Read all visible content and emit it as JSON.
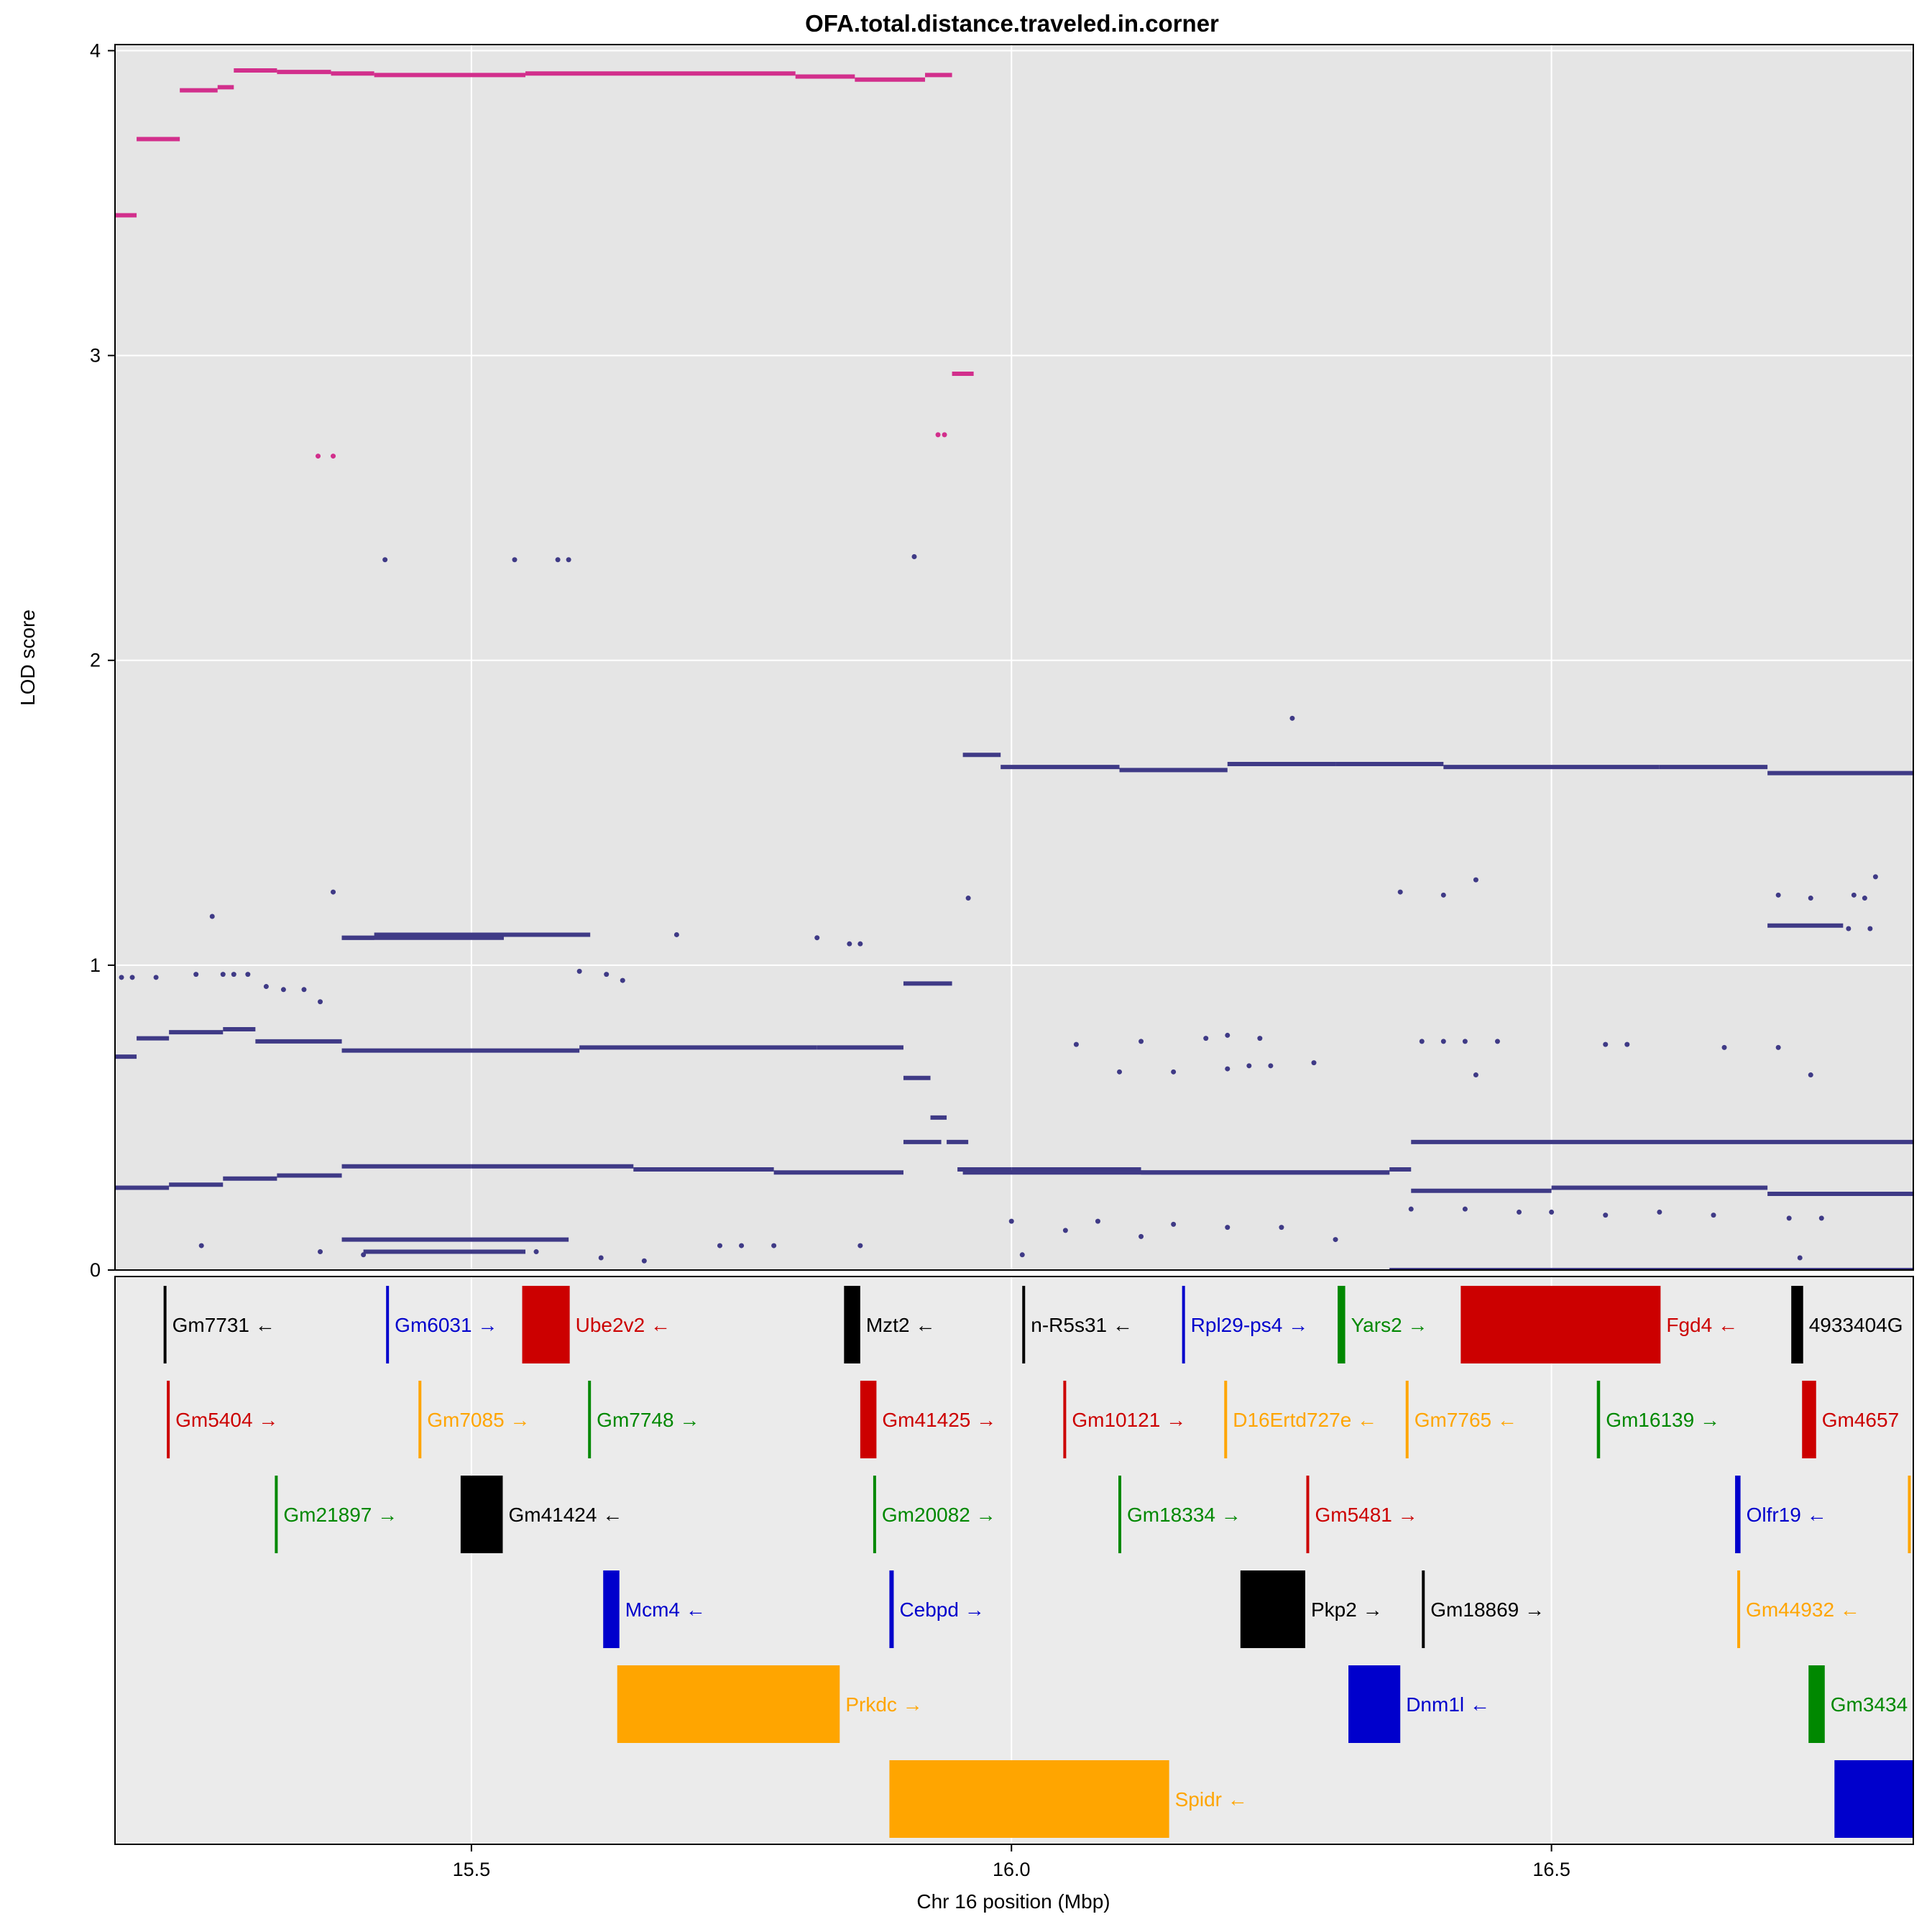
{
  "chart_data": {
    "type": "scatter",
    "title": "OFA.total.distance.traveled.in.corner",
    "xlabel": "Chr 16 position (Mbp)",
    "ylabel": "LOD score",
    "xlim": [
      15.17,
      16.835
    ],
    "ylim": [
      0,
      4.02
    ],
    "x_ticks": [
      15.5,
      16.0,
      16.5
    ],
    "x_tick_labels": [
      "15.5",
      "16.0",
      "16.5"
    ],
    "y_ticks": [
      0,
      1,
      2,
      3,
      4
    ],
    "y_tick_labels": [
      "0",
      "1",
      "2",
      "3",
      "4"
    ],
    "grid": true,
    "colors": {
      "background": "#e5e5e5",
      "gene_background": "#ebebeb",
      "grid": "#ffffff",
      "highlight_points": "#d22f8c",
      "points": "#3f3a86"
    },
    "series": [
      {
        "color": "#d22f8c",
        "segments": [
          [
            15.17,
            15.19,
            3.46
          ],
          [
            15.19,
            15.23,
            3.71
          ],
          [
            15.23,
            15.265,
            3.87
          ],
          [
            15.265,
            15.28,
            3.88
          ],
          [
            15.28,
            15.32,
            3.935
          ],
          [
            15.32,
            15.37,
            3.93
          ],
          [
            15.37,
            15.41,
            3.925
          ],
          [
            15.41,
            15.55,
            3.92
          ],
          [
            15.55,
            15.8,
            3.925
          ],
          [
            15.8,
            15.855,
            3.915
          ],
          [
            15.855,
            15.92,
            3.905
          ],
          [
            15.92,
            15.945,
            3.92
          ],
          [
            15.945,
            15.965,
            2.94
          ]
        ],
        "points": [
          [
            15.358,
            2.67
          ],
          [
            15.372,
            2.67
          ],
          [
            15.932,
            2.74
          ],
          [
            15.938,
            2.74
          ]
        ]
      },
      {
        "color": "#3f3a86",
        "segments": [
          [
            15.17,
            15.19,
            0.7
          ],
          [
            15.19,
            15.22,
            0.76
          ],
          [
            15.22,
            15.27,
            0.78
          ],
          [
            15.27,
            15.3,
            0.79
          ],
          [
            15.3,
            15.38,
            0.75
          ],
          [
            15.38,
            15.6,
            0.72
          ],
          [
            15.6,
            15.82,
            0.73
          ],
          [
            15.82,
            15.9,
            0.73
          ],
          [
            15.9,
            15.925,
            0.63
          ],
          [
            15.925,
            15.94,
            0.5
          ],
          [
            15.94,
            15.96,
            0.42
          ],
          [
            15.38,
            15.41,
            1.09
          ],
          [
            15.41,
            15.61,
            1.1
          ],
          [
            15.38,
            15.53,
            1.09
          ],
          [
            15.9,
            15.945,
            0.94
          ],
          [
            15.17,
            15.22,
            0.27
          ],
          [
            15.22,
            15.27,
            0.28
          ],
          [
            15.27,
            15.32,
            0.3
          ],
          [
            15.32,
            15.38,
            0.31
          ],
          [
            15.38,
            15.5,
            0.34
          ],
          [
            15.5,
            15.65,
            0.34
          ],
          [
            15.65,
            15.78,
            0.33
          ],
          [
            15.78,
            15.9,
            0.32
          ],
          [
            15.9,
            15.935,
            0.42
          ],
          [
            15.95,
            16.0,
            0.33
          ],
          [
            16.0,
            16.12,
            0.33
          ],
          [
            16.12,
            16.35,
            0.32
          ],
          [
            16.35,
            16.37,
            0.33
          ],
          [
            16.37,
            16.835,
            0.42
          ],
          [
            16.37,
            16.5,
            0.26
          ],
          [
            16.5,
            16.7,
            0.27
          ],
          [
            16.7,
            16.835,
            0.25
          ],
          [
            15.955,
            15.99,
            1.69
          ],
          [
            15.99,
            16.1,
            1.65
          ],
          [
            16.1,
            16.2,
            1.64
          ],
          [
            16.2,
            16.3,
            1.66
          ],
          [
            16.3,
            16.4,
            1.66
          ],
          [
            16.4,
            16.6,
            1.65
          ],
          [
            16.6,
            16.7,
            1.65
          ],
          [
            16.7,
            16.835,
            1.63
          ],
          [
            16.7,
            16.77,
            1.13
          ],
          [
            15.38,
            15.59,
            0.1
          ],
          [
            15.4,
            15.55,
            0.06
          ],
          [
            15.955,
            16.35,
            0.32
          ],
          [
            16.35,
            16.835,
            0.0
          ]
        ],
        "points": [
          [
            15.176,
            0.96
          ],
          [
            15.186,
            0.96
          ],
          [
            15.208,
            0.96
          ],
          [
            15.245,
            0.97
          ],
          [
            15.26,
            1.16
          ],
          [
            15.27,
            0.97
          ],
          [
            15.28,
            0.97
          ],
          [
            15.293,
            0.97
          ],
          [
            15.31,
            0.93
          ],
          [
            15.326,
            0.92
          ],
          [
            15.345,
            0.92
          ],
          [
            15.372,
            1.24
          ],
          [
            15.36,
            0.88
          ],
          [
            15.42,
            2.33
          ],
          [
            15.54,
            2.33
          ],
          [
            15.58,
            2.33
          ],
          [
            15.59,
            2.33
          ],
          [
            15.6,
            0.98
          ],
          [
            15.625,
            0.97
          ],
          [
            15.64,
            0.95
          ],
          [
            15.69,
            1.1
          ],
          [
            15.82,
            1.09
          ],
          [
            15.85,
            1.07
          ],
          [
            15.86,
            1.07
          ],
          [
            15.91,
            2.34
          ],
          [
            15.96,
            1.22
          ],
          [
            16.12,
            0.75
          ],
          [
            16.18,
            0.76
          ],
          [
            16.2,
            0.77
          ],
          [
            16.23,
            0.76
          ],
          [
            16.26,
            1.81
          ],
          [
            16.36,
            1.24
          ],
          [
            16.4,
            1.23
          ],
          [
            16.43,
            1.28
          ],
          [
            16.38,
            0.75
          ],
          [
            16.4,
            0.75
          ],
          [
            16.42,
            0.75
          ],
          [
            16.45,
            0.75
          ],
          [
            16.55,
            0.74
          ],
          [
            16.57,
            0.74
          ],
          [
            16.66,
            0.73
          ],
          [
            16.71,
            0.73
          ],
          [
            16.74,
            0.64
          ],
          [
            16.71,
            1.23
          ],
          [
            16.74,
            1.22
          ],
          [
            16.78,
            1.23
          ],
          [
            16.79,
            1.22
          ],
          [
            16.8,
            1.29
          ],
          [
            16.775,
            1.12
          ],
          [
            16.795,
            1.12
          ],
          [
            15.25,
            0.08
          ],
          [
            15.36,
            0.06
          ],
          [
            15.4,
            0.05
          ],
          [
            15.56,
            0.06
          ],
          [
            15.62,
            0.04
          ],
          [
            15.66,
            0.03
          ],
          [
            15.73,
            0.08
          ],
          [
            15.75,
            0.08
          ],
          [
            15.78,
            0.08
          ],
          [
            15.86,
            0.08
          ],
          [
            16.0,
            0.16
          ],
          [
            16.01,
            0.05
          ],
          [
            16.05,
            0.13
          ],
          [
            16.08,
            0.16
          ],
          [
            16.12,
            0.11
          ],
          [
            16.15,
            0.15
          ],
          [
            16.2,
            0.14
          ],
          [
            16.25,
            0.14
          ],
          [
            16.3,
            0.1
          ],
          [
            16.37,
            0.2
          ],
          [
            16.42,
            0.2
          ],
          [
            16.47,
            0.19
          ],
          [
            16.5,
            0.19
          ],
          [
            16.55,
            0.18
          ],
          [
            16.6,
            0.19
          ],
          [
            16.65,
            0.18
          ],
          [
            16.72,
            0.17
          ],
          [
            16.75,
            0.17
          ],
          [
            16.73,
            0.04
          ],
          [
            16.1,
            0.65
          ],
          [
            16.15,
            0.65
          ],
          [
            16.2,
            0.66
          ],
          [
            16.22,
            0.67
          ],
          [
            16.24,
            0.67
          ],
          [
            16.28,
            0.68
          ],
          [
            16.06,
            0.74
          ],
          [
            16.43,
            0.64
          ]
        ]
      }
    ],
    "genes": [
      {
        "name": "Gm7731",
        "start": 15.215,
        "end": 15.216,
        "row": 0,
        "dir": "←",
        "color": "#000000"
      },
      {
        "name": "Gm6031",
        "start": 15.421,
        "end": 15.423,
        "row": 0,
        "dir": "→",
        "color": "#0000cc"
      },
      {
        "name": "Ube2v2",
        "start": 15.547,
        "end": 15.591,
        "row": 0,
        "dir": "←",
        "color": "#cc0000"
      },
      {
        "name": "Mzt2",
        "start": 15.845,
        "end": 15.86,
        "row": 0,
        "dir": "←",
        "color": "#000000"
      },
      {
        "name": "n-R5s31",
        "start": 16.01,
        "end": 16.011,
        "row": 0,
        "dir": "←",
        "color": "#000000"
      },
      {
        "name": "Rpl29-ps4",
        "start": 16.158,
        "end": 16.159,
        "row": 0,
        "dir": "→",
        "color": "#0000cc"
      },
      {
        "name": "Yars2",
        "start": 16.302,
        "end": 16.309,
        "row": 0,
        "dir": "→",
        "color": "#008800"
      },
      {
        "name": "Fgd4",
        "start": 16.416,
        "end": 16.601,
        "row": 0,
        "dir": "←",
        "color": "#cc0000"
      },
      {
        "name": "4933404G",
        "start": 16.722,
        "end": 16.733,
        "row": 0,
        "dir": "",
        "color": "#000000"
      },
      {
        "name": "Gm5404",
        "start": 15.218,
        "end": 15.22,
        "row": 1,
        "dir": "→",
        "color": "#cc0000"
      },
      {
        "name": "Gm7085",
        "start": 15.451,
        "end": 15.452,
        "row": 1,
        "dir": "→",
        "color": "#ffa500"
      },
      {
        "name": "Gm7748",
        "start": 15.608,
        "end": 15.609,
        "row": 1,
        "dir": "→",
        "color": "#008800"
      },
      {
        "name": "Gm41425",
        "start": 15.86,
        "end": 15.875,
        "row": 1,
        "dir": "→",
        "color": "#cc0000"
      },
      {
        "name": "Gm10121",
        "start": 16.048,
        "end": 16.05,
        "row": 1,
        "dir": "→",
        "color": "#cc0000"
      },
      {
        "name": "D16Ertd727e",
        "start": 16.197,
        "end": 16.199,
        "row": 1,
        "dir": "←",
        "color": "#ffa500"
      },
      {
        "name": "Gm7765",
        "start": 16.365,
        "end": 16.366,
        "row": 1,
        "dir": "←",
        "color": "#ffa500"
      },
      {
        "name": "Gm16139",
        "start": 16.542,
        "end": 16.545,
        "row": 1,
        "dir": "→",
        "color": "#008800"
      },
      {
        "name": "Gm4657",
        "start": 16.732,
        "end": 16.745,
        "row": 1,
        "dir": "",
        "color": "#cc0000"
      },
      {
        "name": "Gm21897",
        "start": 15.318,
        "end": 15.319,
        "row": 2,
        "dir": "→",
        "color": "#008800"
      },
      {
        "name": "Gm41424",
        "start": 15.49,
        "end": 15.529,
        "row": 2,
        "dir": "←",
        "color": "#000000"
      },
      {
        "name": "Gm20082",
        "start": 15.872,
        "end": 15.873,
        "row": 2,
        "dir": "→",
        "color": "#008800"
      },
      {
        "name": "Gm18334",
        "start": 16.099,
        "end": 16.1,
        "row": 2,
        "dir": "→",
        "color": "#008800"
      },
      {
        "name": "Gm5481",
        "start": 16.273,
        "end": 16.275,
        "row": 2,
        "dir": "→",
        "color": "#cc0000"
      },
      {
        "name": "Olfr19",
        "start": 16.67,
        "end": 16.675,
        "row": 2,
        "dir": "←",
        "color": "#0000cc"
      },
      {
        "name": "",
        "start": 16.83,
        "end": 16.831,
        "row": 2,
        "dir": "",
        "color": "#ffa500"
      },
      {
        "name": "Mcm4",
        "start": 15.622,
        "end": 15.637,
        "row": 3,
        "dir": "←",
        "color": "#0000cc"
      },
      {
        "name": "Cebpd",
        "start": 15.887,
        "end": 15.891,
        "row": 3,
        "dir": "→",
        "color": "#0000cc"
      },
      {
        "name": "Pkp2",
        "start": 16.212,
        "end": 16.272,
        "row": 3,
        "dir": "→",
        "color": "#000000"
      },
      {
        "name": "Gm18869",
        "start": 16.38,
        "end": 16.381,
        "row": 3,
        "dir": "→",
        "color": "#000000"
      },
      {
        "name": "Gm44932",
        "start": 16.672,
        "end": 16.673,
        "row": 3,
        "dir": "←",
        "color": "#ffa500"
      },
      {
        "name": "Prkdc",
        "start": 15.635,
        "end": 15.841,
        "row": 4,
        "dir": "→",
        "color": "#ffa500"
      },
      {
        "name": "Dnm1l",
        "start": 16.312,
        "end": 16.36,
        "row": 4,
        "dir": "←",
        "color": "#0000cc"
      },
      {
        "name": "Gm3434",
        "start": 16.738,
        "end": 16.753,
        "row": 4,
        "dir": "",
        "color": "#008800"
      },
      {
        "name": "Spidr",
        "start": 15.887,
        "end": 16.146,
        "row": 5,
        "dir": "←",
        "color": "#ffa500"
      },
      {
        "name": "",
        "start": 16.762,
        "end": 16.835,
        "row": 5,
        "dir": "",
        "color": "#0000cc"
      }
    ]
  }
}
